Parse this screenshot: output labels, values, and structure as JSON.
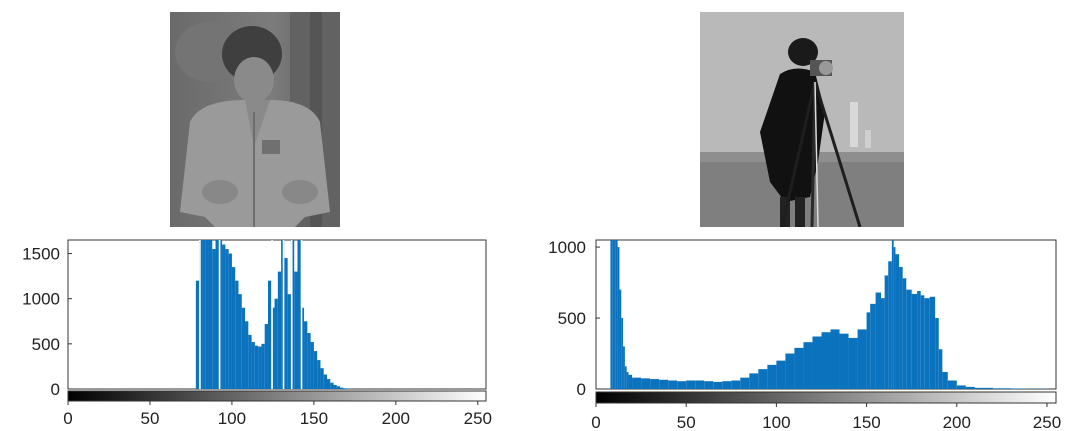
{
  "images": [
    {
      "subject": "child in jacket (low-contrast grayscale photo)"
    },
    {
      "subject": "cameraman with tripod (grayscale photo)"
    }
  ],
  "colors": {
    "bar": "#0b72bd",
    "axis": "#000000",
    "background": "#ffffff"
  },
  "chart_data": [
    {
      "type": "bar",
      "title": "",
      "xlabel": "",
      "ylabel": "",
      "xlim": [
        0,
        255
      ],
      "ylim": [
        0,
        1650
      ],
      "yticks": [
        0,
        500,
        1000,
        1500
      ],
      "xticks": [
        0,
        50,
        100,
        150,
        200,
        250
      ],
      "colorbar": "grayscale 0-255",
      "x": [
        78,
        80,
        82,
        84,
        86,
        88,
        90,
        92,
        94,
        96,
        98,
        100,
        102,
        104,
        106,
        108,
        110,
        112,
        114,
        116,
        118,
        120,
        122,
        124,
        126,
        128,
        130,
        132,
        134,
        136,
        138,
        140,
        142,
        144,
        146,
        148,
        150,
        152,
        154,
        156,
        158,
        160,
        162,
        164,
        166,
        168,
        170
      ],
      "values": [
        1200,
        1650,
        1650,
        1650,
        1650,
        1550,
        1650,
        1650,
        1600,
        1550,
        1500,
        1350,
        1200,
        1050,
        900,
        750,
        600,
        520,
        480,
        470,
        500,
        720,
        1200,
        900,
        1000,
        1300,
        1650,
        1450,
        1050,
        1650,
        1300,
        1650,
        900,
        750,
        620,
        520,
        420,
        320,
        230,
        160,
        110,
        70,
        45,
        30,
        15,
        8,
        3
      ],
      "spikes_note": "white gaps (empty bins) near 80, 92, 124, 136, 142"
    },
    {
      "type": "bar",
      "title": "",
      "xlabel": "",
      "ylabel": "",
      "xlim": [
        0,
        255
      ],
      "ylim": [
        0,
        1050
      ],
      "yticks": [
        0,
        500,
        1000
      ],
      "xticks": [
        0,
        50,
        100,
        150,
        200,
        250
      ],
      "colorbar": "grayscale 0-255",
      "x": [
        8,
        9,
        10,
        11,
        12,
        13,
        14,
        15,
        16,
        17,
        18,
        20,
        25,
        30,
        35,
        40,
        45,
        50,
        55,
        60,
        65,
        70,
        75,
        80,
        85,
        90,
        95,
        100,
        105,
        110,
        115,
        120,
        125,
        130,
        135,
        140,
        145,
        150,
        152,
        155,
        158,
        160,
        162,
        164,
        165,
        166,
        168,
        170,
        172,
        175,
        178,
        180,
        182,
        185,
        188,
        190,
        192,
        195,
        200,
        205,
        210,
        220,
        230,
        240,
        250
      ],
      "values": [
        1050,
        1050,
        1050,
        1050,
        1000,
        700,
        500,
        300,
        160,
        120,
        100,
        80,
        75,
        70,
        65,
        60,
        55,
        60,
        60,
        55,
        50,
        55,
        60,
        80,
        110,
        140,
        170,
        200,
        250,
        290,
        330,
        370,
        400,
        420,
        390,
        360,
        420,
        540,
        600,
        680,
        640,
        800,
        900,
        1050,
        1000,
        950,
        860,
        780,
        700,
        670,
        690,
        660,
        640,
        650,
        500,
        280,
        120,
        60,
        25,
        15,
        8,
        5,
        3,
        2,
        1
      ]
    }
  ]
}
